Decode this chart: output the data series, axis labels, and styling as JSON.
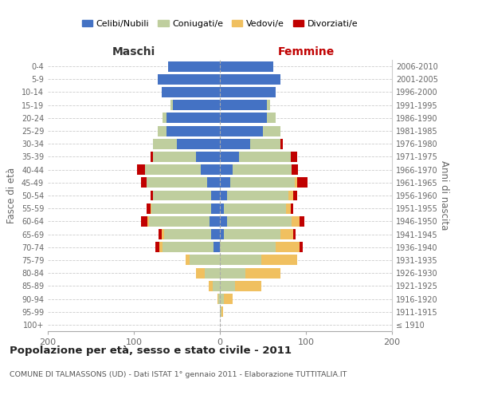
{
  "age_groups": [
    "100+",
    "95-99",
    "90-94",
    "85-89",
    "80-84",
    "75-79",
    "70-74",
    "65-69",
    "60-64",
    "55-59",
    "50-54",
    "45-49",
    "40-44",
    "35-39",
    "30-34",
    "25-29",
    "20-24",
    "15-19",
    "10-14",
    "5-9",
    "0-4"
  ],
  "birth_years": [
    "≤ 1910",
    "1911-1915",
    "1916-1920",
    "1921-1925",
    "1926-1930",
    "1931-1935",
    "1936-1940",
    "1941-1945",
    "1946-1950",
    "1951-1955",
    "1956-1960",
    "1961-1965",
    "1966-1970",
    "1971-1975",
    "1976-1980",
    "1981-1985",
    "1986-1990",
    "1991-1995",
    "1996-2000",
    "2001-2005",
    "2006-2010"
  ],
  "males": {
    "celibi": [
      0,
      0,
      0,
      0,
      0,
      0,
      7,
      10,
      12,
      10,
      10,
      15,
      22,
      28,
      50,
      62,
      62,
      55,
      68,
      72,
      60
    ],
    "coniugati": [
      0,
      0,
      2,
      8,
      18,
      35,
      60,
      55,
      70,
      70,
      68,
      70,
      65,
      50,
      28,
      10,
      5,
      2,
      0,
      0,
      0
    ],
    "vedovi": [
      0,
      0,
      1,
      5,
      10,
      5,
      3,
      3,
      2,
      1,
      0,
      0,
      0,
      0,
      0,
      0,
      0,
      0,
      0,
      0,
      0
    ],
    "divorziati": [
      0,
      0,
      0,
      0,
      0,
      0,
      5,
      3,
      8,
      4,
      3,
      7,
      9,
      3,
      0,
      0,
      0,
      0,
      0,
      0,
      0
    ]
  },
  "females": {
    "nubili": [
      0,
      0,
      0,
      0,
      0,
      0,
      0,
      5,
      8,
      5,
      8,
      12,
      15,
      22,
      35,
      50,
      55,
      55,
      65,
      70,
      62
    ],
    "coniugate": [
      0,
      2,
      5,
      18,
      30,
      48,
      65,
      65,
      75,
      72,
      72,
      75,
      68,
      60,
      35,
      20,
      10,
      3,
      0,
      0,
      0
    ],
    "vedove": [
      0,
      2,
      10,
      30,
      40,
      42,
      28,
      15,
      10,
      5,
      5,
      3,
      0,
      0,
      0,
      0,
      0,
      0,
      0,
      0,
      0
    ],
    "divorziate": [
      0,
      0,
      0,
      0,
      0,
      0,
      3,
      3,
      5,
      3,
      5,
      12,
      8,
      8,
      3,
      0,
      0,
      0,
      0,
      0,
      0
    ]
  },
  "colors": {
    "celibi_nubili": "#4472C4",
    "coniugati": "#BFCE9E",
    "vedovi": "#F0C060",
    "divorziati": "#C00000"
  },
  "title": "Popolazione per età, sesso e stato civile - 2011",
  "subtitle": "COMUNE DI TALMASSONS (UD) - Dati ISTAT 1° gennaio 2011 - Elaborazione TUTTITALIA.IT",
  "xlabel_left": "Maschi",
  "xlabel_right": "Femmine",
  "ylabel_left": "Fasce di età",
  "ylabel_right": "Anni di nascita",
  "legend_labels": [
    "Celibi/Nubili",
    "Coniugati/e",
    "Vedovi/e",
    "Divorziati/e"
  ],
  "xlim": 200,
  "background_color": "#ffffff",
  "grid_color": "#cccccc"
}
